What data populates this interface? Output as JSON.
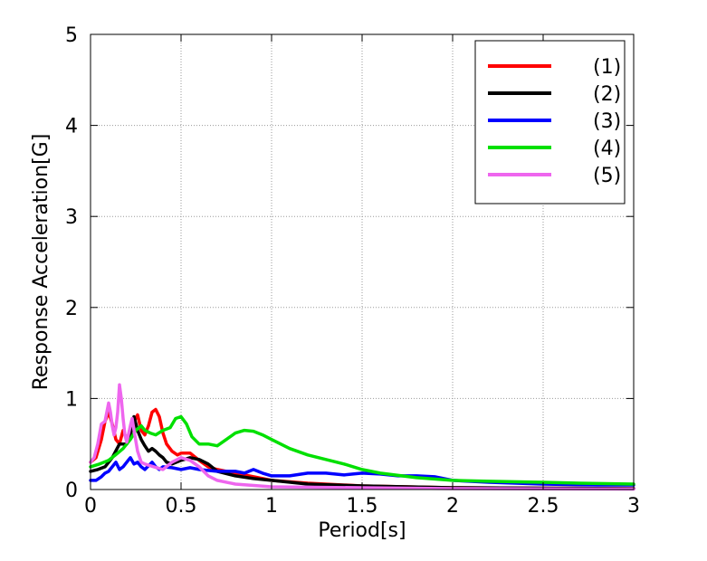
{
  "chart_data": {
    "type": "line",
    "title": "",
    "xlabel": "Period[s]",
    "ylabel": "Response Acceleration[G]",
    "xlim": [
      0,
      3
    ],
    "ylim": [
      0,
      5
    ],
    "xticks": [
      "0",
      "0.5",
      "1",
      "1.5",
      "2",
      "2.5",
      "3"
    ],
    "yticks": [
      "0",
      "1",
      "2",
      "3",
      "4",
      "5"
    ],
    "grid": true,
    "legend_position": "top-right",
    "series": [
      {
        "name": "(1)",
        "color": "#ff0000",
        "points": [
          [
            0,
            0.3
          ],
          [
            0.03,
            0.35
          ],
          [
            0.06,
            0.55
          ],
          [
            0.08,
            0.75
          ],
          [
            0.1,
            0.85
          ],
          [
            0.12,
            0.72
          ],
          [
            0.14,
            0.55
          ],
          [
            0.16,
            0.5
          ],
          [
            0.18,
            0.65
          ],
          [
            0.2,
            0.55
          ],
          [
            0.22,
            0.65
          ],
          [
            0.24,
            0.75
          ],
          [
            0.26,
            0.82
          ],
          [
            0.28,
            0.65
          ],
          [
            0.3,
            0.6
          ],
          [
            0.32,
            0.7
          ],
          [
            0.34,
            0.85
          ],
          [
            0.36,
            0.88
          ],
          [
            0.38,
            0.8
          ],
          [
            0.4,
            0.62
          ],
          [
            0.42,
            0.5
          ],
          [
            0.45,
            0.42
          ],
          [
            0.48,
            0.38
          ],
          [
            0.5,
            0.4
          ],
          [
            0.55,
            0.4
          ],
          [
            0.6,
            0.32
          ],
          [
            0.65,
            0.25
          ],
          [
            0.7,
            0.22
          ],
          [
            0.8,
            0.18
          ],
          [
            0.9,
            0.14
          ],
          [
            1.0,
            0.1
          ],
          [
            1.2,
            0.07
          ],
          [
            1.5,
            0.04
          ],
          [
            2.0,
            0.02
          ],
          [
            2.5,
            0.015
          ],
          [
            3.0,
            0.01
          ]
        ]
      },
      {
        "name": "(2)",
        "color": "#000000",
        "points": [
          [
            0,
            0.2
          ],
          [
            0.04,
            0.22
          ],
          [
            0.08,
            0.25
          ],
          [
            0.12,
            0.35
          ],
          [
            0.16,
            0.5
          ],
          [
            0.2,
            0.5
          ],
          [
            0.22,
            0.6
          ],
          [
            0.24,
            0.8
          ],
          [
            0.26,
            0.65
          ],
          [
            0.28,
            0.55
          ],
          [
            0.3,
            0.48
          ],
          [
            0.32,
            0.42
          ],
          [
            0.34,
            0.45
          ],
          [
            0.36,
            0.42
          ],
          [
            0.38,
            0.38
          ],
          [
            0.4,
            0.35
          ],
          [
            0.42,
            0.3
          ],
          [
            0.45,
            0.28
          ],
          [
            0.5,
            0.32
          ],
          [
            0.55,
            0.35
          ],
          [
            0.6,
            0.33
          ],
          [
            0.65,
            0.28
          ],
          [
            0.7,
            0.2
          ],
          [
            0.8,
            0.15
          ],
          [
            0.9,
            0.12
          ],
          [
            1.0,
            0.1
          ],
          [
            1.2,
            0.06
          ],
          [
            1.5,
            0.04
          ],
          [
            2.0,
            0.02
          ],
          [
            2.5,
            0.015
          ],
          [
            3.0,
            0.01
          ]
        ]
      },
      {
        "name": "(3)",
        "color": "#0000ff",
        "points": [
          [
            0,
            0.1
          ],
          [
            0.03,
            0.1
          ],
          [
            0.06,
            0.14
          ],
          [
            0.08,
            0.18
          ],
          [
            0.1,
            0.2
          ],
          [
            0.12,
            0.25
          ],
          [
            0.14,
            0.3
          ],
          [
            0.16,
            0.22
          ],
          [
            0.18,
            0.25
          ],
          [
            0.2,
            0.3
          ],
          [
            0.22,
            0.35
          ],
          [
            0.24,
            0.28
          ],
          [
            0.26,
            0.3
          ],
          [
            0.28,
            0.25
          ],
          [
            0.3,
            0.22
          ],
          [
            0.32,
            0.26
          ],
          [
            0.34,
            0.3
          ],
          [
            0.36,
            0.25
          ],
          [
            0.38,
            0.22
          ],
          [
            0.4,
            0.25
          ],
          [
            0.45,
            0.24
          ],
          [
            0.5,
            0.22
          ],
          [
            0.55,
            0.24
          ],
          [
            0.6,
            0.22
          ],
          [
            0.7,
            0.2
          ],
          [
            0.8,
            0.2
          ],
          [
            0.85,
            0.18
          ],
          [
            0.9,
            0.22
          ],
          [
            0.95,
            0.18
          ],
          [
            1.0,
            0.15
          ],
          [
            1.1,
            0.15
          ],
          [
            1.2,
            0.18
          ],
          [
            1.3,
            0.18
          ],
          [
            1.4,
            0.16
          ],
          [
            1.5,
            0.18
          ],
          [
            1.6,
            0.17
          ],
          [
            1.7,
            0.15
          ],
          [
            1.8,
            0.15
          ],
          [
            1.9,
            0.14
          ],
          [
            2.0,
            0.1
          ],
          [
            2.2,
            0.08
          ],
          [
            2.5,
            0.06
          ],
          [
            2.8,
            0.05
          ],
          [
            3.0,
            0.05
          ]
        ]
      },
      {
        "name": "(4)",
        "color": "#00e000",
        "points": [
          [
            0,
            0.25
          ],
          [
            0.05,
            0.28
          ],
          [
            0.1,
            0.32
          ],
          [
            0.15,
            0.4
          ],
          [
            0.18,
            0.45
          ],
          [
            0.2,
            0.5
          ],
          [
            0.22,
            0.55
          ],
          [
            0.25,
            0.65
          ],
          [
            0.28,
            0.7
          ],
          [
            0.3,
            0.65
          ],
          [
            0.33,
            0.62
          ],
          [
            0.36,
            0.6
          ],
          [
            0.4,
            0.65
          ],
          [
            0.44,
            0.68
          ],
          [
            0.47,
            0.78
          ],
          [
            0.5,
            0.8
          ],
          [
            0.53,
            0.72
          ],
          [
            0.56,
            0.58
          ],
          [
            0.6,
            0.5
          ],
          [
            0.65,
            0.5
          ],
          [
            0.7,
            0.48
          ],
          [
            0.75,
            0.55
          ],
          [
            0.8,
            0.62
          ],
          [
            0.85,
            0.65
          ],
          [
            0.9,
            0.64
          ],
          [
            0.95,
            0.6
          ],
          [
            1.0,
            0.55
          ],
          [
            1.1,
            0.45
          ],
          [
            1.2,
            0.38
          ],
          [
            1.3,
            0.33
          ],
          [
            1.4,
            0.28
          ],
          [
            1.5,
            0.22
          ],
          [
            1.6,
            0.18
          ],
          [
            1.8,
            0.13
          ],
          [
            2.0,
            0.1
          ],
          [
            2.2,
            0.09
          ],
          [
            2.5,
            0.08
          ],
          [
            2.7,
            0.07
          ],
          [
            3.0,
            0.06
          ]
        ]
      },
      {
        "name": "(5)",
        "color": "#ee66ee",
        "points": [
          [
            0,
            0.3
          ],
          [
            0.02,
            0.35
          ],
          [
            0.04,
            0.5
          ],
          [
            0.06,
            0.72
          ],
          [
            0.08,
            0.75
          ],
          [
            0.1,
            0.95
          ],
          [
            0.11,
            0.85
          ],
          [
            0.12,
            0.7
          ],
          [
            0.13,
            0.6
          ],
          [
            0.14,
            0.68
          ],
          [
            0.15,
            0.85
          ],
          [
            0.16,
            1.15
          ],
          [
            0.17,
            1.0
          ],
          [
            0.18,
            0.78
          ],
          [
            0.19,
            0.6
          ],
          [
            0.2,
            0.52
          ],
          [
            0.22,
            0.7
          ],
          [
            0.23,
            0.78
          ],
          [
            0.24,
            0.65
          ],
          [
            0.26,
            0.42
          ],
          [
            0.28,
            0.3
          ],
          [
            0.3,
            0.28
          ],
          [
            0.35,
            0.25
          ],
          [
            0.4,
            0.22
          ],
          [
            0.45,
            0.3
          ],
          [
            0.5,
            0.35
          ],
          [
            0.55,
            0.32
          ],
          [
            0.6,
            0.25
          ],
          [
            0.65,
            0.15
          ],
          [
            0.7,
            0.1
          ],
          [
            0.8,
            0.06
          ],
          [
            1.0,
            0.03
          ],
          [
            1.5,
            0.02
          ],
          [
            2.0,
            0.01
          ],
          [
            3.0,
            0.005
          ]
        ]
      }
    ]
  }
}
